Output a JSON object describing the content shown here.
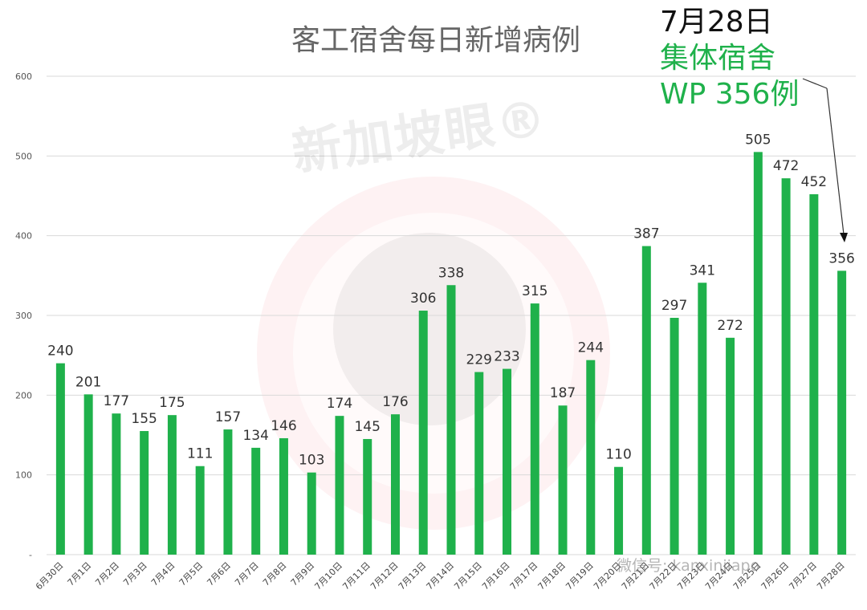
{
  "chart_data": {
    "type": "bar",
    "title": "客工宿舍每日新增病例",
    "categories": [
      "6月30日",
      "7月1日",
      "7月2日",
      "7月3日",
      "7月4日",
      "7月5日",
      "7月6日",
      "7月7日",
      "7月8日",
      "7月9日",
      "7月10日",
      "7月11日",
      "7月12日",
      "7月13日",
      "7月14日",
      "7月15日",
      "7月16日",
      "7月17日",
      "7月18日",
      "7月19日",
      "7月20日",
      "7月21日",
      "7月22日",
      "7月23日",
      "7月24日",
      "7月25日",
      "7月26日",
      "7月27日",
      "7月28日"
    ],
    "values": [
      240,
      201,
      177,
      155,
      175,
      111,
      157,
      134,
      146,
      103,
      174,
      145,
      176,
      306,
      338,
      229,
      233,
      315,
      187,
      244,
      110,
      387,
      297,
      341,
      272,
      505,
      472,
      452,
      356
    ],
    "yticks": [
      "-",
      "100",
      "200",
      "300",
      "400",
      "500",
      "600"
    ],
    "ylim": [
      0,
      600
    ],
    "grid": true,
    "legend": "none",
    "bar_color": "#1fb14b",
    "annotation": {
      "date": "7月28日",
      "line2": "集体宿舍",
      "line3": "WP 356例"
    }
  },
  "watermark": "新加坡眼®",
  "wechat_id": "微信号: kanxinjiapo"
}
